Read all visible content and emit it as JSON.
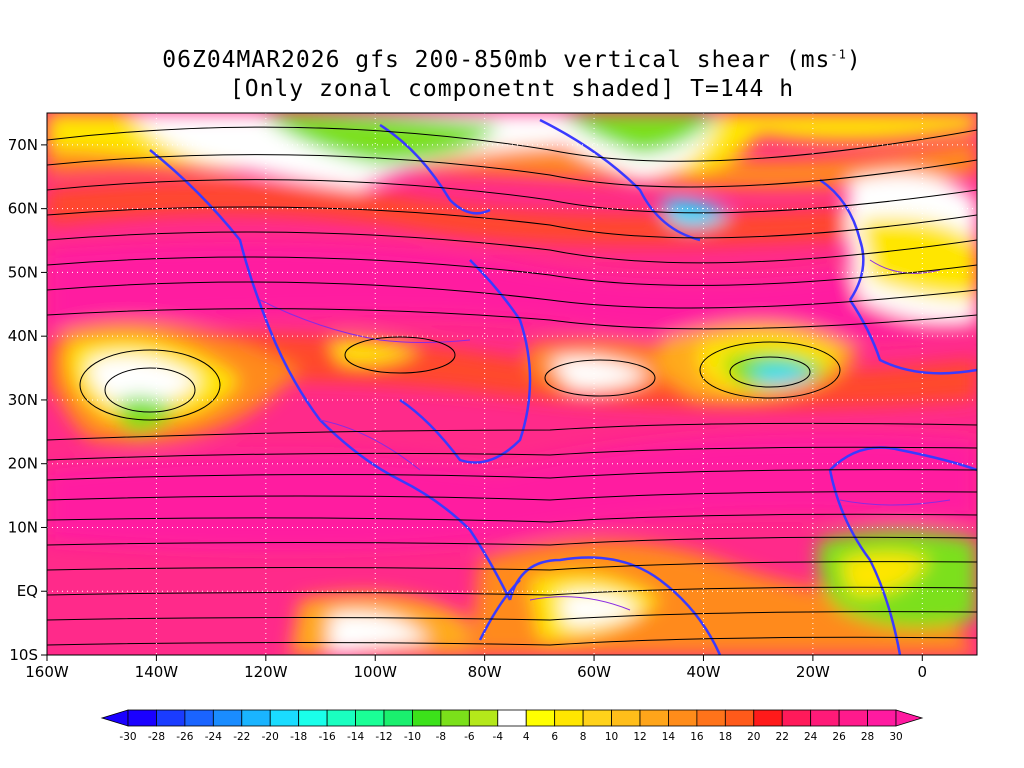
{
  "title": {
    "line1_pre": "06Z04MAR2026 gfs 200-850mb vertical shear (ms",
    "line1_sup": "-1",
    "line1_post": ")",
    "line2": "[Only zonal componetnt shaded] T=144 h"
  },
  "map": {
    "lon_range": [
      -160,
      10
    ],
    "lat_range": [
      -10,
      75
    ],
    "lat_labels": [
      {
        "text": "70N",
        "lat": 70
      },
      {
        "text": "60N",
        "lat": 60
      },
      {
        "text": "50N",
        "lat": 50
      },
      {
        "text": "40N",
        "lat": 40
      },
      {
        "text": "30N",
        "lat": 30
      },
      {
        "text": "20N",
        "lat": 20
      },
      {
        "text": "10N",
        "lat": 10
      },
      {
        "text": "EQ",
        "lat": 0
      },
      {
        "text": "10S",
        "lat": -10
      }
    ],
    "lon_labels": [
      {
        "text": "160W",
        "lon": -160
      },
      {
        "text": "140W",
        "lon": -140
      },
      {
        "text": "120W",
        "lon": -120
      },
      {
        "text": "100W",
        "lon": -100
      },
      {
        "text": "80W",
        "lon": -80
      },
      {
        "text": "60W",
        "lon": -60
      },
      {
        "text": "40W",
        "lon": -40
      },
      {
        "text": "20W",
        "lon": -20
      },
      {
        "text": "0",
        "lon": 0
      }
    ],
    "colors": {
      "strongest": "#ff1aa0",
      "strong": "#ff2a6e",
      "moderate": "#ff6a1a",
      "weak": "#ffa21a",
      "near_zero": "#ffffff",
      "light_positive": "#ffe600",
      "negative": "#7be01a",
      "coastline": "#3a3aff",
      "streamline": "#000000"
    }
  },
  "colorbar": {
    "labels": [
      "-30",
      "-28",
      "-26",
      "-24",
      "-22",
      "-20",
      "-18",
      "-16",
      "-14",
      "-12",
      "-10",
      "-8",
      "-6",
      "-4",
      "4",
      "6",
      "8",
      "10",
      "12",
      "14",
      "16",
      "18",
      "20",
      "22",
      "24",
      "26",
      "28",
      "30"
    ],
    "colors": [
      "#1a00ff",
      "#1a3cff",
      "#1a64ff",
      "#1a8cff",
      "#1ab4ff",
      "#1adcff",
      "#1affea",
      "#1affc0",
      "#1aff96",
      "#1af06e",
      "#3ce21a",
      "#7be01a",
      "#b4e81a",
      "#ffffff",
      "#ffff00",
      "#ffe600",
      "#ffd21a",
      "#ffbe1a",
      "#ffa51a",
      "#ff8c1a",
      "#ff731a",
      "#ff5a1a",
      "#ff1a1a",
      "#ff1a5a",
      "#ff1a78",
      "#ff1a8c",
      "#ff1aa0"
    ]
  }
}
